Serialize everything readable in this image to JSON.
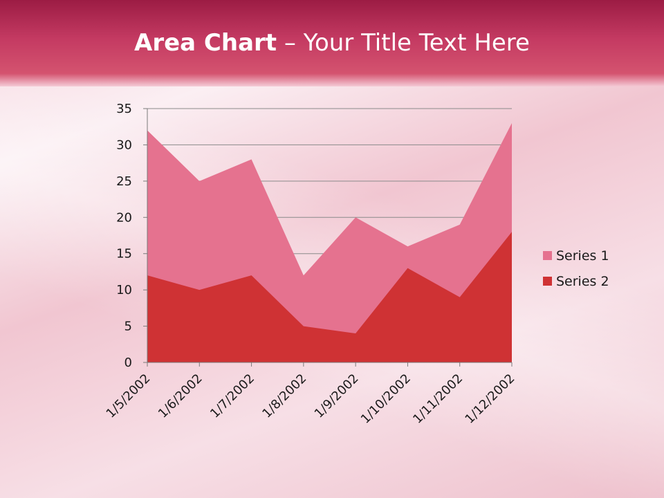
{
  "slide": {
    "title_bold": "Area Chart",
    "title_dash": " – ",
    "title_rest": "Your Title Text Here"
  },
  "chart_data": {
    "type": "area",
    "title": "",
    "xlabel": "",
    "ylabel": "",
    "categories": [
      "1/5/2002",
      "1/6/2002",
      "1/7/2002",
      "1/8/2002",
      "1/9/2002",
      "1/10/2002",
      "1/11/2002",
      "1/12/2002"
    ],
    "series": [
      {
        "name": "Series 1",
        "values": [
          32,
          25,
          28,
          12,
          20,
          16,
          19,
          33
        ],
        "color": "#e5728f"
      },
      {
        "name": "Series 2",
        "values": [
          12,
          10,
          12,
          5,
          4,
          13,
          9,
          18
        ],
        "color": "#cf3234"
      }
    ],
    "ylim": [
      0,
      35
    ],
    "yticks": [
      0,
      5,
      10,
      15,
      20,
      25,
      30,
      35
    ],
    "grid": true,
    "legend": "right"
  }
}
